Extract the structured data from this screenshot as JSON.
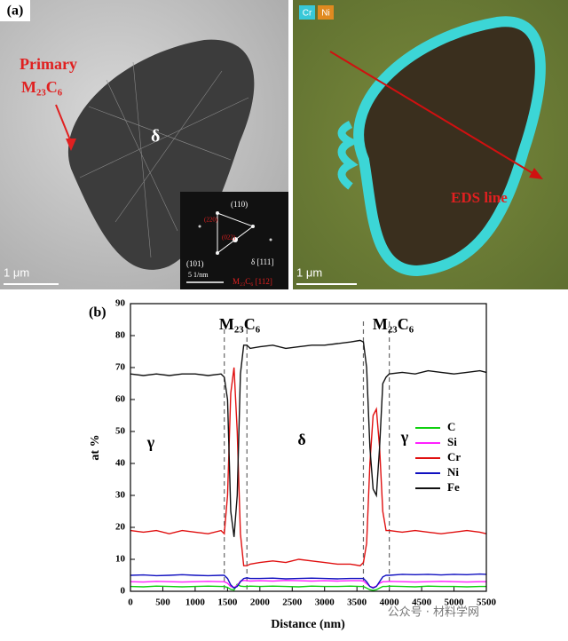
{
  "panel_a": {
    "label": "(a)",
    "primary": "Primary",
    "primary_phase": "M₂₃C₆",
    "delta": "δ",
    "scale_left": "1 μm",
    "sad_110": "(110)",
    "sad_101": "(101)",
    "sad_zone": "δ [111]",
    "sad_scale": "5 1/nm",
    "sad_m23": "M₂₃C₆ [112]",
    "sad_220": "(220)",
    "sad_022": "(022)",
    "map_cr": "Cr",
    "map_ni": "Ni",
    "eds_line": "EDS line",
    "scale_right": "1 μm"
  },
  "chart_data": {
    "type": "line",
    "label": "(b)",
    "xlabel": "Distance (nm)",
    "ylabel": "at %",
    "annotations": [
      "M₂₃C₆",
      "M₂₃C₆",
      "γ",
      "δ",
      "γ"
    ],
    "x": [
      0,
      200,
      400,
      600,
      800,
      1000,
      1200,
      1400,
      1450,
      1500,
      1550,
      1600,
      1650,
      1700,
      1750,
      1800,
      1850,
      2000,
      2200,
      2400,
      2600,
      2800,
      3000,
      3200,
      3400,
      3550,
      3600,
      3650,
      3700,
      3750,
      3800,
      3850,
      3900,
      3950,
      4000,
      4200,
      4400,
      4600,
      4800,
      5000,
      5200,
      5400,
      5500
    ],
    "series": [
      {
        "name": "C",
        "color": "#10d010",
        "values": [
          1.5,
          1.4,
          1.6,
          1.5,
          1.4,
          1.5,
          1.6,
          1.5,
          1.5,
          1.2,
          0.6,
          0.4,
          2.2,
          1.6,
          1.5,
          1.5,
          1.6,
          1.5,
          1.6,
          1.5,
          1.4,
          1.6,
          1.5,
          1.5,
          1.6,
          1.5,
          1.5,
          1.0,
          0.5,
          0.3,
          0.5,
          1.0,
          1.5,
          1.5,
          1.6,
          1.5,
          1.4,
          1.6,
          1.5,
          1.5,
          1.4,
          1.5,
          1.5
        ]
      },
      {
        "name": "Si",
        "color": "#ff20ff",
        "values": [
          3,
          2.9,
          3.1,
          3,
          2.9,
          3,
          3.1,
          3,
          3,
          2.5,
          1.5,
          1.2,
          1.8,
          3.2,
          3.4,
          3.3,
          3.2,
          3.3,
          3.2,
          3.4,
          3.3,
          3.2,
          3.3,
          3.2,
          3.3,
          3.3,
          3.2,
          2.4,
          1.5,
          1.2,
          1.6,
          2.5,
          3,
          3,
          3.1,
          3,
          2.9,
          3,
          3.1,
          3,
          2.9,
          3,
          3
        ]
      },
      {
        "name": "Cr",
        "color": "#e01010",
        "values": [
          19,
          18.5,
          19,
          18,
          19,
          18.5,
          18,
          19,
          18,
          30,
          62,
          70,
          50,
          18,
          8,
          8,
          8.5,
          9,
          9.5,
          9,
          10,
          9.5,
          9,
          8.5,
          8.5,
          8,
          9,
          15,
          40,
          55,
          57,
          45,
          25,
          19,
          19,
          18.5,
          19,
          18.5,
          18,
          18.5,
          19,
          18.5,
          18
        ]
      },
      {
        "name": "Ni",
        "color": "#1010c0",
        "values": [
          5,
          5.1,
          4.9,
          5,
          5.2,
          5,
          4.9,
          5,
          5,
          4,
          2,
          1,
          1.5,
          3,
          4,
          4.2,
          4,
          4,
          4.1,
          3.9,
          4,
          4.1,
          4,
          3.9,
          4,
          4,
          4,
          3,
          1.5,
          1,
          1.5,
          3,
          4.5,
          5,
          5,
          5.3,
          5.2,
          5.3,
          5.1,
          5.3,
          5.2,
          5.4,
          5.3
        ]
      },
      {
        "name": "Fe",
        "color": "#111111",
        "values": [
          68,
          67.5,
          68,
          67.5,
          68,
          68,
          67.5,
          68,
          67,
          60,
          25,
          17,
          30,
          68,
          77,
          77,
          76,
          76.5,
          77,
          76,
          76.5,
          77,
          77,
          77.5,
          78,
          78.5,
          78,
          70,
          45,
          32,
          30,
          45,
          65,
          67,
          68,
          68.5,
          68,
          69,
          68.5,
          68,
          68.5,
          69,
          68.5
        ]
      }
    ],
    "vlines": [
      1450,
      1800,
      3600,
      4000
    ],
    "xlim": [
      0,
      5500
    ],
    "xticks": [
      0,
      500,
      1000,
      1500,
      2000,
      2500,
      3000,
      3500,
      4000,
      4500,
      5000,
      5500
    ],
    "ylim": [
      0,
      90
    ],
    "yticks": [
      0,
      10,
      20,
      30,
      40,
      50,
      60,
      70,
      80,
      90
    ],
    "legend": "right"
  },
  "watermark": "公众号 · 材料学网"
}
